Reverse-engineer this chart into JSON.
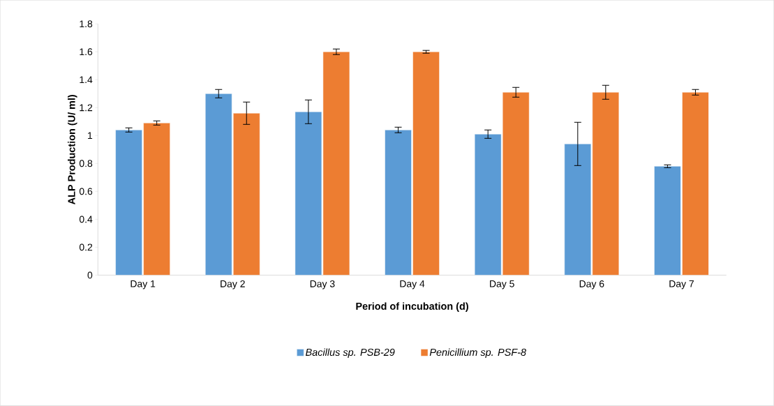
{
  "chart_data": {
    "type": "bar",
    "xlabel": "Period of incubation (d)",
    "ylabel": "ALP Production (U/ ml)",
    "categories": [
      "Day 1",
      "Day 2",
      "Day 3",
      "Day 4",
      "Day 5",
      "Day 6",
      "Day 7"
    ],
    "series": [
      {
        "name": "Bacillus sp. PSB-29",
        "color": "#5b9bd5",
        "values": [
          1.04,
          1.3,
          1.17,
          1.04,
          1.01,
          0.94,
          0.78
        ],
        "errors": [
          0.015,
          0.03,
          0.085,
          0.02,
          0.03,
          0.155,
          0.01
        ]
      },
      {
        "name": "Penicillium sp. PSF-8",
        "color": "#ed7d31",
        "values": [
          1.09,
          1.16,
          1.6,
          1.6,
          1.31,
          1.31,
          1.31
        ],
        "errors": [
          0.015,
          0.08,
          0.02,
          0.01,
          0.035,
          0.05,
          0.02
        ]
      }
    ],
    "ylim": [
      0,
      1.8
    ],
    "yticks": [
      0,
      0.2,
      0.4,
      0.6,
      0.8,
      1,
      1.2,
      1.4,
      1.6,
      1.8
    ],
    "grid": false,
    "legend": "bottom"
  }
}
